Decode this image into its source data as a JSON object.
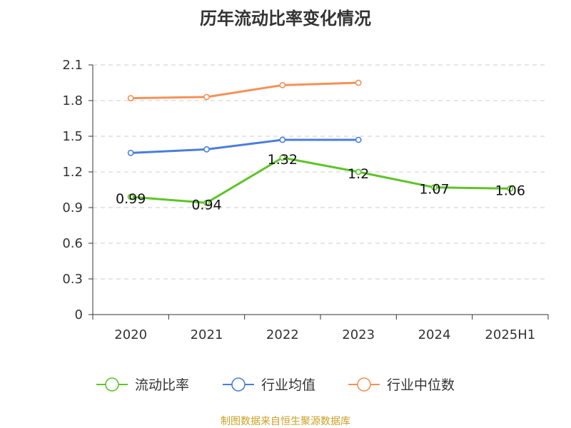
{
  "title": "历年流动比率变化情况",
  "source": "制图数据来自恒生聚源数据库",
  "colors": {
    "current_ratio": "#5ec427",
    "industry_avg": "#4a7edb",
    "industry_median": "#f59156",
    "grid": "#cccccc",
    "axis": "#333333",
    "source_text": "#c9a227"
  },
  "chart_data": {
    "type": "line",
    "categories": [
      "2020",
      "2021",
      "2022",
      "2023",
      "2024",
      "2025H1"
    ],
    "ylim": [
      0,
      2.1
    ],
    "yticks": [
      "0",
      "0.3",
      "0.6",
      "0.9",
      "1.2",
      "1.5",
      "1.8",
      "2.1"
    ],
    "grid": true,
    "legend_position": "bottom",
    "series": [
      {
        "name": "流动比率",
        "values": [
          0.99,
          0.94,
          1.32,
          1.2,
          1.07,
          1.06
        ],
        "labels": [
          "0.99",
          "0.94",
          "1.32",
          "1.2",
          "1.07",
          "1.06"
        ]
      },
      {
        "name": "行业均值",
        "values": [
          1.36,
          1.39,
          1.47,
          1.47,
          null,
          null
        ]
      },
      {
        "name": "行业中位数",
        "values": [
          1.82,
          1.83,
          1.93,
          1.95,
          null,
          null
        ]
      }
    ]
  }
}
